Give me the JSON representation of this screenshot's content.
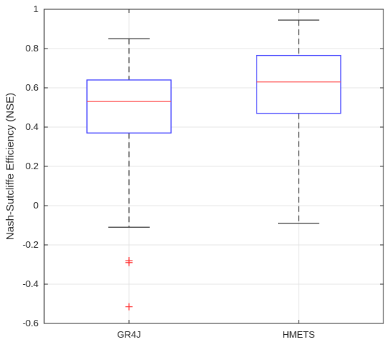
{
  "chart_data": {
    "type": "box",
    "title": "",
    "xlabel": "",
    "ylabel": "Nash-Sutcliffe Efficiency (NSE)",
    "ylim": [
      -0.6,
      1
    ],
    "yticks": [
      -0.6,
      -0.4,
      -0.2,
      0,
      0.2,
      0.4,
      0.6,
      0.8,
      1
    ],
    "ytick_labels": [
      "-0.6",
      "-0.4",
      "-0.2",
      "0",
      "0.2",
      "0.4",
      "0.6",
      "0.8",
      "1"
    ],
    "categories": [
      "GR4J",
      "HMETS"
    ],
    "boxes": [
      {
        "category": "GR4J",
        "whisker_low": -0.11,
        "q1": 0.37,
        "median": 0.53,
        "q3": 0.64,
        "whisker_high": 0.85,
        "outliers": [
          -0.28,
          -0.29,
          -0.515
        ]
      },
      {
        "category": "HMETS",
        "whisker_low": -0.09,
        "q1": 0.47,
        "median": 0.63,
        "q3": 0.765,
        "whisker_high": 0.945,
        "outliers": []
      }
    ],
    "grid": true,
    "colors": {
      "box": "#3a3aff",
      "median": "#ff5050",
      "whisker": "#333333",
      "outlier": "#ff3030",
      "grid": "#e4e4e4",
      "axes": "#262626"
    }
  }
}
